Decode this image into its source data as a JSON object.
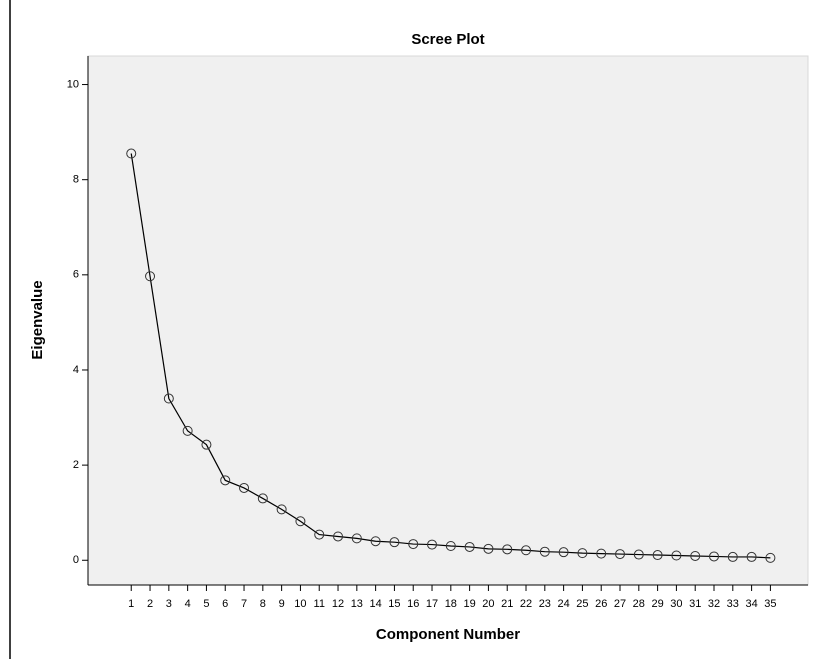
{
  "chart_data": {
    "type": "line",
    "title": "Scree Plot",
    "x_label": "Component Number",
    "y_label": "Eigenvalue",
    "x": [
      1,
      2,
      3,
      4,
      5,
      6,
      7,
      8,
      9,
      10,
      11,
      12,
      13,
      14,
      15,
      16,
      17,
      18,
      19,
      20,
      21,
      22,
      23,
      24,
      25,
      26,
      27,
      28,
      29,
      30,
      31,
      32,
      33,
      34,
      35
    ],
    "values": [
      8.55,
      5.97,
      3.4,
      2.72,
      2.43,
      1.68,
      1.52,
      1.3,
      1.07,
      0.82,
      0.54,
      0.5,
      0.46,
      0.4,
      0.38,
      0.34,
      0.33,
      0.3,
      0.28,
      0.24,
      0.23,
      0.21,
      0.18,
      0.17,
      0.15,
      0.14,
      0.13,
      0.12,
      0.11,
      0.1,
      0.09,
      0.08,
      0.07,
      0.07,
      0.05
    ],
    "color": "#000000",
    "xlim": [
      -1.3,
      37
    ],
    "ylim": [
      -0.52,
      10.6
    ],
    "xticks": [
      1,
      2,
      3,
      4,
      5,
      6,
      7,
      8,
      9,
      10,
      11,
      12,
      13,
      14,
      15,
      16,
      17,
      18,
      19,
      20,
      21,
      22,
      23,
      24,
      25,
      26,
      27,
      28,
      29,
      30,
      31,
      32,
      33,
      34,
      35
    ],
    "yticks": [
      0,
      2,
      4,
      6,
      8,
      10
    ]
  }
}
